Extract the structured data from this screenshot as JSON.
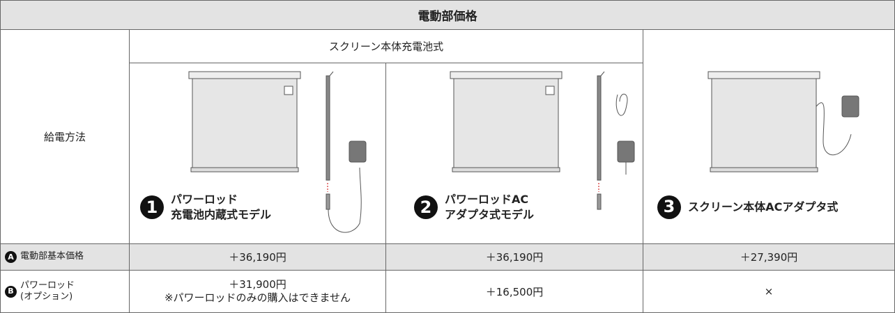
{
  "header": {
    "title": "電動部価格"
  },
  "table": {
    "row_header": "給電方法",
    "group_header": "スクリーン本体充電池式",
    "options": [
      {
        "number": "1",
        "label_lines": [
          "パワーロッド",
          "充電池内蔵式モデル"
        ]
      },
      {
        "number": "2",
        "label_lines": [
          "パワーロッドAC",
          "アダプタ式モデル"
        ]
      },
      {
        "number": "3",
        "label_lines": [
          "スクリーン本体ACアダプタ式"
        ]
      }
    ],
    "rows": [
      {
        "badge": "A",
        "label_lines": [
          "電動部基本価格"
        ],
        "cells": [
          [
            "＋36,190円"
          ],
          [
            "＋36,190円"
          ],
          [
            "＋27,390円"
          ]
        ]
      },
      {
        "badge": "B",
        "label_lines": [
          "パワーロッド",
          "(オプション)"
        ],
        "cells": [
          [
            "＋31,900円",
            "※パワーロッドのみの購入はできません"
          ],
          [
            "＋16,500円"
          ],
          [
            "×"
          ]
        ]
      }
    ]
  }
}
